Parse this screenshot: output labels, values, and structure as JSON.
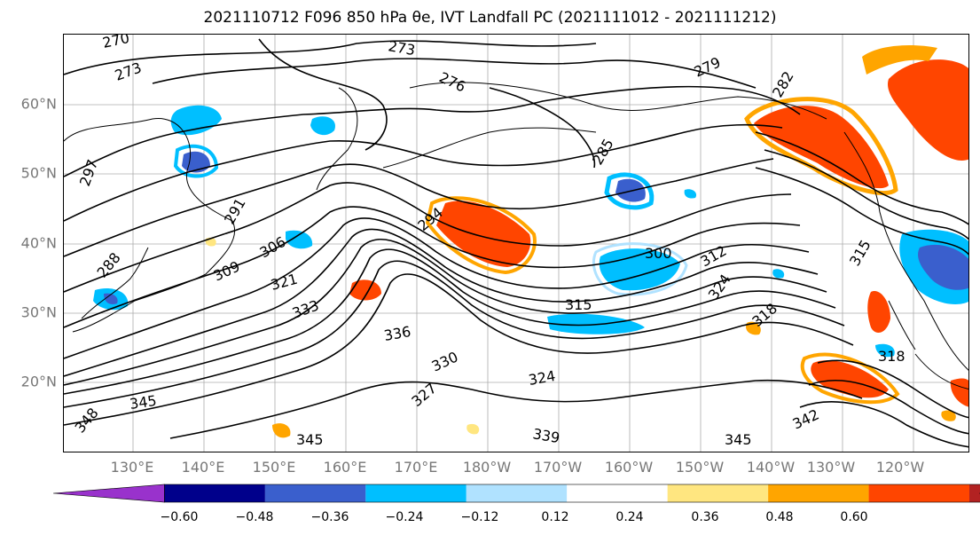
{
  "title": "2021110712 F096 850 hPa θe, IVT Landfall PC (2021111012 - 2021111212)",
  "map": {
    "lat_labels": [
      "60°N",
      "50°N",
      "40°N",
      "30°N",
      "20°N"
    ],
    "lon_labels": [
      "130°E",
      "140°E",
      "150°E",
      "160°E",
      "170°E",
      "180°W",
      "170°W",
      "160°W",
      "150°W",
      "140°W",
      "130°W",
      "120°W"
    ],
    "contour_labels": [
      "270",
      "273",
      "273",
      "276",
      "279",
      "282",
      "285",
      "288",
      "291",
      "294",
      "297",
      "300",
      "306",
      "309",
      "312",
      "315",
      "315",
      "318",
      "318",
      "321",
      "324",
      "324",
      "327",
      "330",
      "333",
      "336",
      "339",
      "342",
      "345",
      "345",
      "345",
      "348"
    ]
  },
  "colorbar": {
    "ticks": [
      "−0.60",
      "−0.48",
      "−0.36",
      "−0.24",
      "−0.12",
      "0.12",
      "0.24",
      "0.36",
      "0.48",
      "0.60"
    ],
    "colors": [
      "#9932cc",
      "#00008b",
      "#3a5fcd",
      "#00bfff",
      "#b0e2ff",
      "#ffffff",
      "#ffe680",
      "#ffa500",
      "#ff4500",
      "#b22222",
      "#ff88aa"
    ]
  }
}
